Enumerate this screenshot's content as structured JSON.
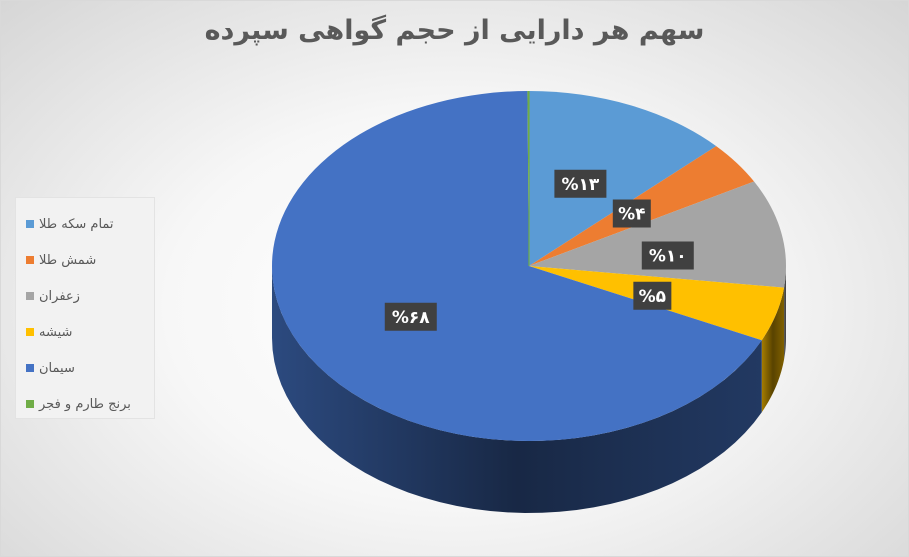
{
  "chart_data": {
    "type": "pie",
    "title": "سهم هر دارایی از حجم گواهی سپرده",
    "categories": [
      "تمام سکه طلا",
      "شمش طلا",
      "زعفران",
      "شیشه",
      "سیمان",
      "برنج طارم و فجر"
    ],
    "values": [
      13,
      4,
      10,
      5,
      68,
      0.1
    ],
    "data_labels": [
      "%۱۳",
      "%۴",
      "%۱۰",
      "%۵",
      "%۶۸",
      ""
    ],
    "colors": [
      "#5b9bd5",
      "#ed7d31",
      "#a5a5a5",
      "#ffc000",
      "#4472c4",
      "#70ad47"
    ],
    "legend_position": "left",
    "style": "3d-pie"
  }
}
